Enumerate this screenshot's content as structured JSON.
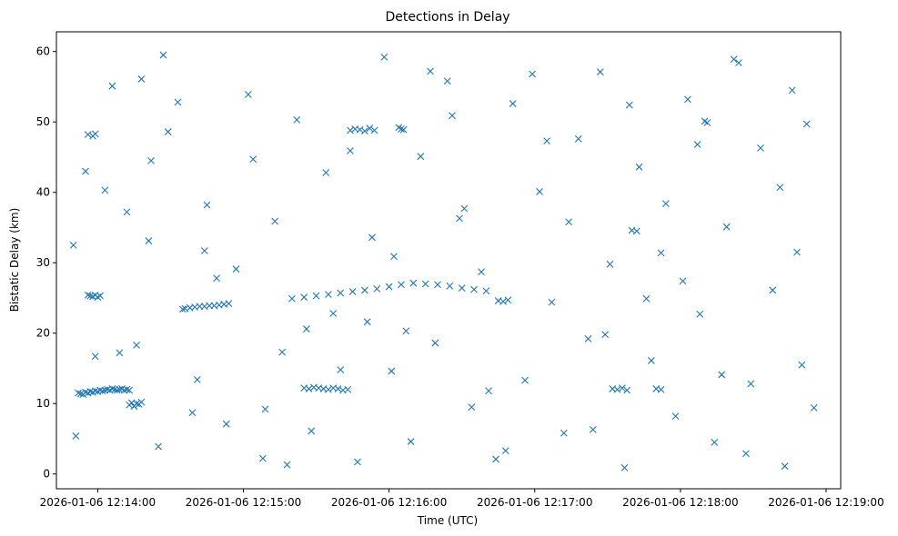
{
  "chart_data": {
    "type": "scatter",
    "title": "Detections in Delay",
    "xlabel": "Time (UTC)",
    "ylabel": "Bistatic Delay (km)",
    "x_axis": {
      "kind": "time",
      "range": [
        "2026-01-06 12:13:43",
        "2026-01-06 12:19:06"
      ],
      "ticks": [
        "2026-01-06 12:14:00",
        "2026-01-06 12:15:00",
        "2026-01-06 12:16:00",
        "2026-01-06 12:17:00",
        "2026-01-06 12:18:00",
        "2026-01-06 12:19:00"
      ]
    },
    "y_axis": {
      "range": [
        -2.1,
        62.8
      ],
      "ticks": [
        0,
        10,
        20,
        30,
        40,
        50,
        60
      ]
    },
    "grid": false,
    "legend": "none",
    "series": [
      {
        "marker": "x",
        "color": "#1f77b4",
        "x_time": [
          "2026-01-06 12:13:52",
          "2026-01-06 12:13:53",
          "2026-01-06 12:13:54",
          "2026-01-06 12:13:55",
          "2026-01-06 12:13:56",
          "2026-01-06 12:13:57",
          "2026-01-06 12:13:58",
          "2026-01-06 12:13:59",
          "2026-01-06 12:14:00",
          "2026-01-06 12:14:01",
          "2026-01-06 12:14:02",
          "2026-01-06 12:14:03",
          "2026-01-06 12:14:04",
          "2026-01-06 12:14:05",
          "2026-01-06 12:14:06",
          "2026-01-06 12:14:07",
          "2026-01-06 12:14:08",
          "2026-01-06 12:14:09",
          "2026-01-06 12:14:10",
          "2026-01-06 12:14:11",
          "2026-01-06 12:14:12",
          "2026-01-06 12:14:13",
          "2026-01-06 12:14:13",
          "2026-01-06 12:14:14",
          "2026-01-06 12:14:15",
          "2026-01-06 12:14:16",
          "2026-01-06 12:14:17",
          "2026-01-06 12:14:18",
          "2026-01-06 12:13:56",
          "2026-01-06 12:13:57",
          "2026-01-06 12:13:58",
          "2026-01-06 12:13:59",
          "2026-01-06 12:14:00",
          "2026-01-06 12:14:01",
          "2026-01-06 12:13:56",
          "2026-01-06 12:13:58",
          "2026-01-06 12:13:59",
          "2026-01-06 12:14:35",
          "2026-01-06 12:14:36",
          "2026-01-06 12:14:38",
          "2026-01-06 12:14:40",
          "2026-01-06 12:14:42",
          "2026-01-06 12:14:44",
          "2026-01-06 12:14:46",
          "2026-01-06 12:14:48",
          "2026-01-06 12:14:50",
          "2026-01-06 12:14:52",
          "2026-01-06 12:14:54",
          "2026-01-06 12:15:20",
          "2026-01-06 12:15:25",
          "2026-01-06 12:15:30",
          "2026-01-06 12:15:35",
          "2026-01-06 12:15:40",
          "2026-01-06 12:15:45",
          "2026-01-06 12:15:50",
          "2026-01-06 12:15:55",
          "2026-01-06 12:16:00",
          "2026-01-06 12:16:05",
          "2026-01-06 12:16:10",
          "2026-01-06 12:16:15",
          "2026-01-06 12:16:20",
          "2026-01-06 12:16:25",
          "2026-01-06 12:16:30",
          "2026-01-06 12:16:35",
          "2026-01-06 12:16:40",
          "2026-01-06 12:15:25",
          "2026-01-06 12:15:27",
          "2026-01-06 12:15:29",
          "2026-01-06 12:15:31",
          "2026-01-06 12:15:33",
          "2026-01-06 12:15:35",
          "2026-01-06 12:15:37",
          "2026-01-06 12:15:39",
          "2026-01-06 12:15:41",
          "2026-01-06 12:15:43",
          "2026-01-06 12:15:44",
          "2026-01-06 12:15:46",
          "2026-01-06 12:15:48",
          "2026-01-06 12:15:50",
          "2026-01-06 12:15:52",
          "2026-01-06 12:15:54",
          "2026-01-06 12:16:04",
          "2026-01-06 12:16:05",
          "2026-01-06 12:16:06",
          "2026-01-06 12:16:45",
          "2026-01-06 12:16:47",
          "2026-01-06 12:16:49",
          "2026-01-06 12:17:32",
          "2026-01-06 12:17:34",
          "2026-01-06 12:17:36",
          "2026-01-06 12:17:38",
          "2026-01-06 12:17:50",
          "2026-01-06 12:17:52",
          "2026-01-06 12:18:10",
          "2026-01-06 12:18:11",
          "2026-01-06 12:17:40",
          "2026-01-06 12:17:42",
          "2026-01-06 12:13:50",
          "2026-01-06 12:14:03",
          "2026-01-06 12:14:06",
          "2026-01-06 12:14:09",
          "2026-01-06 12:14:18",
          "2026-01-06 12:14:21",
          "2026-01-06 12:14:25",
          "2026-01-06 12:14:29",
          "2026-01-06 12:14:33",
          "2026-01-06 12:14:41",
          "2026-01-06 12:14:45",
          "2026-01-06 12:14:53",
          "2026-01-06 12:14:57",
          "2026-01-06 12:15:04",
          "2026-01-06 12:15:08",
          "2026-01-06 12:15:13",
          "2026-01-06 12:15:16",
          "2026-01-06 12:15:22",
          "2026-01-06 12:15:28",
          "2026-01-06 12:15:34",
          "2026-01-06 12:15:40",
          "2026-01-06 12:15:47",
          "2026-01-06 12:15:51",
          "2026-01-06 12:15:58",
          "2026-01-06 12:16:02",
          "2026-01-06 12:16:09",
          "2026-01-06 12:16:13",
          "2026-01-06 12:16:19",
          "2026-01-06 12:16:24",
          "2026-01-06 12:16:29",
          "2026-01-06 12:16:34",
          "2026-01-06 12:16:38",
          "2026-01-06 12:16:44",
          "2026-01-06 12:16:51",
          "2026-01-06 12:16:56",
          "2026-01-06 12:17:02",
          "2026-01-06 12:17:07",
          "2026-01-06 12:17:12",
          "2026-01-06 12:17:18",
          "2026-01-06 12:17:22",
          "2026-01-06 12:17:27",
          "2026-01-06 12:17:31",
          "2026-01-06 12:17:37",
          "2026-01-06 12:17:43",
          "2026-01-06 12:17:48",
          "2026-01-06 12:17:54",
          "2026-01-06 12:17:58",
          "2026-01-06 12:18:03",
          "2026-01-06 12:18:08",
          "2026-01-06 12:18:14",
          "2026-01-06 12:18:19",
          "2026-01-06 12:18:24",
          "2026-01-06 12:18:29",
          "2026-01-06 12:18:33",
          "2026-01-06 12:18:38",
          "2026-01-06 12:18:43",
          "2026-01-06 12:18:48",
          "2026-01-06 12:18:52",
          "2026-01-06 12:18:55",
          "2026-01-06 12:13:51",
          "2026-01-06 12:14:12",
          "2026-01-06 12:14:27",
          "2026-01-06 12:14:49",
          "2026-01-06 12:15:18",
          "2026-01-06 12:15:44",
          "2026-01-06 12:16:07",
          "2026-01-06 12:16:31",
          "2026-01-06 12:16:59",
          "2026-01-06 12:17:24",
          "2026-01-06 12:17:46",
          "2026-01-06 12:18:07",
          "2026-01-06 12:18:27",
          "2026-01-06 12:18:46",
          "2026-01-06 12:13:55",
          "2026-01-06 12:14:16",
          "2026-01-06 12:14:39",
          "2026-01-06 12:15:02",
          "2026-01-06 12:15:26",
          "2026-01-06 12:15:53",
          "2026-01-06 12:16:17",
          "2026-01-06 12:16:41",
          "2026-01-06 12:17:05",
          "2026-01-06 12:17:29",
          "2026-01-06 12:17:52",
          "2026-01-06 12:18:17",
          "2026-01-06 12:18:41",
          "2026-01-06 12:13:59",
          "2026-01-06 12:14:22",
          "2026-01-06 12:14:44",
          "2026-01-06 12:15:09",
          "2026-01-06 12:15:37",
          "2026-01-06 12:16:01",
          "2026-01-06 12:16:26",
          "2026-01-06 12:16:48",
          "2026-01-06 12:17:14",
          "2026-01-06 12:17:39",
          "2026-01-06 12:18:01",
          "2026-01-06 12:18:22",
          "2026-01-06 12:18:50"
        ],
        "y": [
          11.5,
          11.4,
          11.3,
          11.6,
          11.5,
          11.7,
          11.6,
          11.8,
          11.7,
          11.9,
          11.8,
          11.9,
          12.0,
          11.9,
          12.1,
          12.0,
          11.9,
          12.0,
          12.1,
          11.9,
          12.0,
          11.9,
          9.8,
          10.1,
          9.6,
          10.0,
          9.9,
          10.2,
          25.4,
          25.3,
          25.2,
          25.4,
          25.1,
          25.3,
          48.2,
          48.0,
          48.3,
          23.4,
          23.5,
          23.6,
          23.7,
          23.8,
          23.8,
          23.9,
          23.9,
          24.0,
          24.1,
          24.2,
          24.9,
          25.1,
          25.3,
          25.5,
          25.7,
          25.9,
          26.1,
          26.3,
          26.6,
          26.9,
          27.1,
          27.0,
          26.9,
          26.7,
          26.4,
          26.2,
          26.0,
          12.2,
          12.1,
          12.3,
          12.2,
          12.1,
          12.0,
          12.2,
          12.1,
          11.9,
          12.0,
          48.8,
          49.0,
          48.9,
          48.7,
          49.1,
          48.8,
          49.2,
          49.0,
          48.9,
          24.6,
          24.5,
          24.7,
          12.1,
          12.0,
          12.2,
          11.9,
          12.1,
          12.0,
          50.1,
          49.9,
          34.6,
          34.5,
          32.5,
          40.3,
          55.1,
          17.2,
          56.1,
          33.1,
          3.9,
          48.6,
          52.8,
          13.4,
          38.2,
          7.1,
          29.1,
          44.7,
          2.2,
          35.9,
          17.3,
          50.3,
          6.1,
          42.8,
          14.8,
          1.7,
          21.6,
          59.2,
          30.9,
          4.6,
          45.1,
          18.6,
          55.8,
          36.3,
          9.5,
          28.7,
          2.1,
          52.6,
          13.3,
          40.1,
          24.4,
          5.8,
          47.6,
          19.2,
          57.1,
          29.8,
          0.9,
          43.6,
          16.1,
          38.4,
          8.2,
          53.2,
          22.7,
          4.5,
          35.1,
          58.4,
          12.8,
          46.3,
          26.1,
          1.1,
          31.5,
          49.7,
          9.4,
          5.4,
          37.2,
          59.5,
          27.8,
          1.3,
          45.9,
          20.3,
          37.7,
          56.8,
          6.3,
          24.9,
          46.8,
          2.9,
          54.5,
          43.0,
          18.3,
          8.7,
          53.9,
          20.6,
          33.6,
          57.2,
          11.8,
          47.3,
          19.8,
          31.4,
          14.1,
          40.7,
          16.7,
          44.5,
          31.7,
          9.2,
          22.8,
          14.6,
          50.9,
          3.3,
          35.8,
          52.4,
          27.4,
          58.9,
          15.5
        ]
      }
    ]
  }
}
